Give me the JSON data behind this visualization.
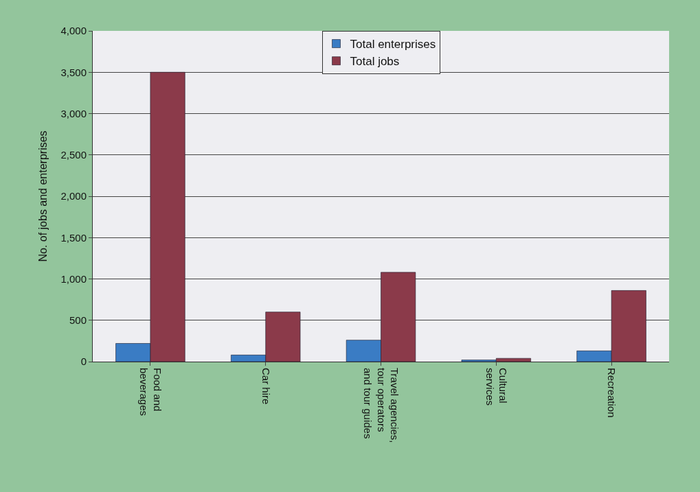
{
  "chart_data": {
    "type": "bar",
    "ylabel": "No. of jobs and enterprises",
    "categories": [
      "Food and beverages",
      "Car hire",
      "Travel agencies, tour operators and tour guides",
      "Cultural services",
      "Recreation"
    ],
    "series": [
      {
        "name": "Total enterprises",
        "color": "#3a7cc4",
        "values": [
          220,
          80,
          260,
          20,
          130
        ]
      },
      {
        "name": "Total jobs",
        "color": "#8b3a4a",
        "values": [
          3500,
          600,
          1080,
          40,
          860
        ]
      }
    ],
    "ylim": [
      0,
      4000
    ],
    "yticks": [
      {
        "value": 0,
        "label": "0"
      },
      {
        "value": 500,
        "label": "500"
      },
      {
        "value": 1000,
        "label": "1,000"
      },
      {
        "value": 1500,
        "label": "1,500"
      },
      {
        "value": 2000,
        "label": "2,000"
      },
      {
        "value": 2500,
        "label": "2,500"
      },
      {
        "value": 3000,
        "label": "3,000"
      },
      {
        "value": 3500,
        "label": "3,500"
      },
      {
        "value": 4000,
        "label": "4,000"
      }
    ],
    "grid": "y",
    "legend": "top"
  }
}
